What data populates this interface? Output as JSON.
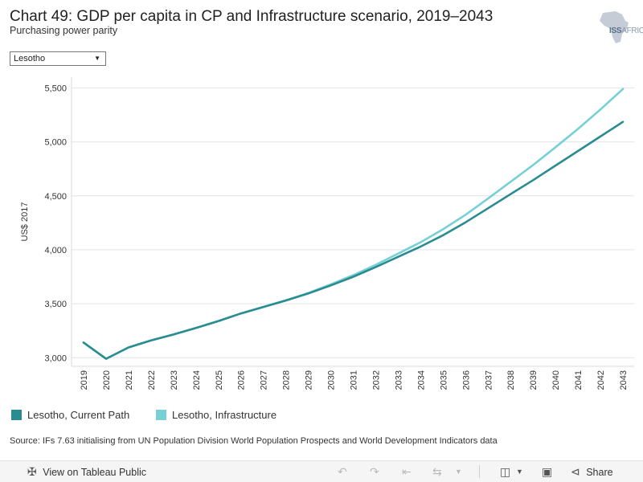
{
  "header": {
    "title": "Chart 49: GDP per capita in CP and Infrastructure scenario, 2019–2043",
    "subtitle": "Purchasing power parity",
    "logo_text": "ISS",
    "logo_text_suffix": "AFRICA"
  },
  "filter": {
    "selected": "Lesotho"
  },
  "chart_data": {
    "type": "line",
    "title": "Chart 49: GDP per capita in CP and Infrastructure scenario, 2019–2043",
    "subtitle": "Purchasing power parity",
    "xlabel": "",
    "ylabel": "US$ 2017",
    "ylim": [
      2920,
      5600
    ],
    "yticks": [
      3000,
      3500,
      4000,
      4500,
      5000,
      5500
    ],
    "ytick_labels": [
      "3,000",
      "3,500",
      "4,000",
      "4,500",
      "5,000",
      "5,500"
    ],
    "x": [
      "2019",
      "2020",
      "2021",
      "2022",
      "2023",
      "2024",
      "2025",
      "2026",
      "2027",
      "2028",
      "2029",
      "2030",
      "2031",
      "2032",
      "2033",
      "2034",
      "2035",
      "2036",
      "2037",
      "2038",
      "2039",
      "2040",
      "2041",
      "2042",
      "2043"
    ],
    "series": [
      {
        "name": "Lesotho, Current Path",
        "color": "#2a8c90",
        "values": [
          3140,
          2990,
          3095,
          3160,
          3215,
          3275,
          3340,
          3410,
          3470,
          3530,
          3595,
          3670,
          3750,
          3840,
          3935,
          4030,
          4135,
          4255,
          4385,
          4515,
          4645,
          4780,
          4915,
          5050,
          5185
        ]
      },
      {
        "name": "Lesotho, Infrastructure",
        "color": "#76d0d4",
        "values": [
          3140,
          2990,
          3095,
          3160,
          3215,
          3275,
          3340,
          3410,
          3470,
          3532,
          3600,
          3680,
          3765,
          3860,
          3965,
          4070,
          4190,
          4325,
          4475,
          4630,
          4785,
          4950,
          5120,
          5300,
          5490
        ]
      }
    ],
    "legend": [
      "Lesotho, Current Path",
      "Lesotho, Infrastructure"
    ],
    "legend_position": "bottom-left",
    "grid": true
  },
  "source": "Source: IFs 7.63 initialising from UN Population Division World Population Prospects and World Development Indicators data",
  "toolbar": {
    "view_label": "View on Tableau Public",
    "share_label": "Share"
  }
}
